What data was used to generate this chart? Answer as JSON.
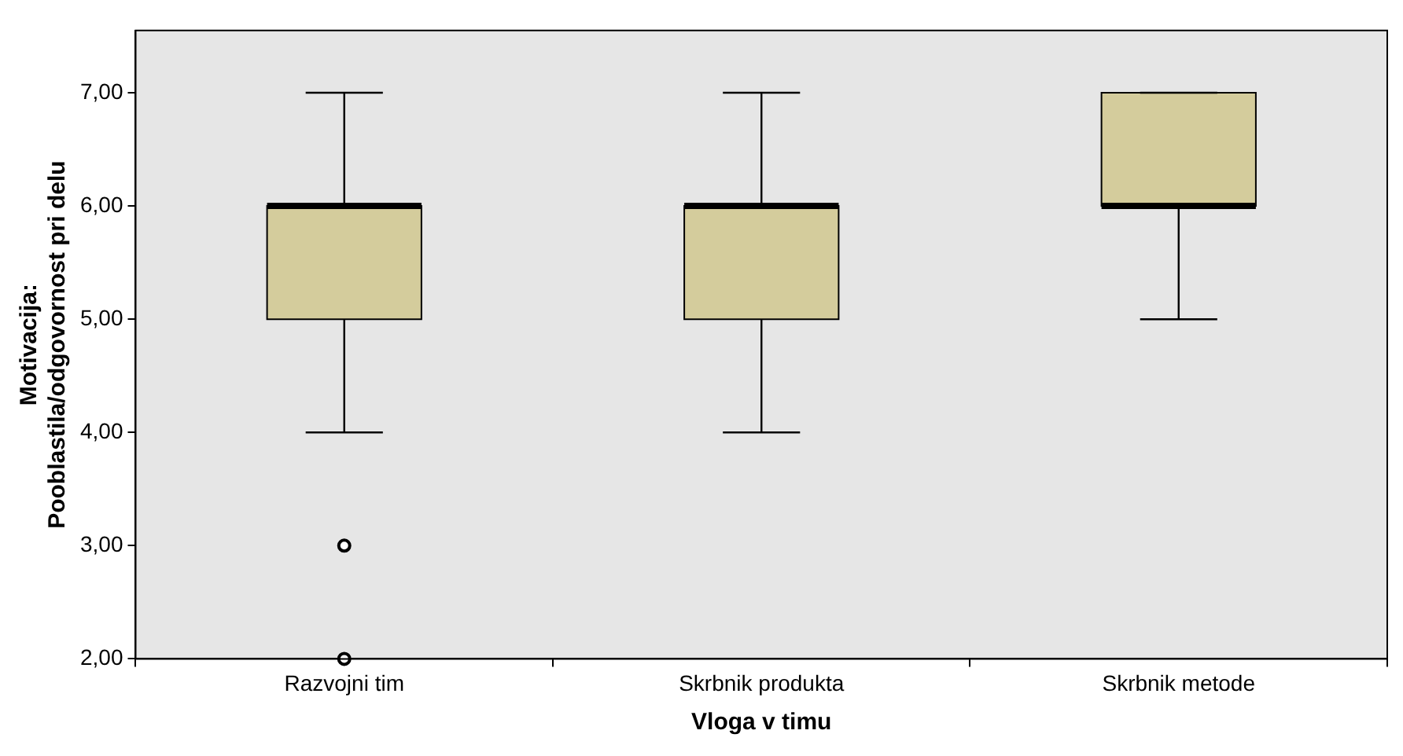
{
  "chart_data": {
    "type": "box",
    "xlabel": "Vloga v timu",
    "ylabel": "Motivacija:\nPooblastila/odgovornost pri delu",
    "categories": [
      "Razvojni tim",
      "Skrbnik produkta",
      "Skrbnik metode"
    ],
    "color": "#d4cc9c",
    "boxes": [
      {
        "low": 4,
        "q1": 5,
        "median": 6,
        "q3": 6,
        "high": 7,
        "outliers": [
          3,
          2
        ]
      },
      {
        "low": 4,
        "q1": 5,
        "median": 6,
        "q3": 6,
        "high": 7
      },
      {
        "low": 5,
        "q1": 6,
        "median": 6,
        "q3": 7,
        "high": 7
      }
    ],
    "ylim": [
      2,
      7.55
    ],
    "yticks": [
      {
        "value": 2,
        "label": "2,00"
      },
      {
        "value": 3,
        "label": "3,00"
      },
      {
        "value": 4,
        "label": "4,00"
      },
      {
        "value": 5,
        "label": "5,00"
      },
      {
        "value": 6,
        "label": "6,00"
      },
      {
        "value": 7,
        "label": "7,00"
      }
    ],
    "grid": false,
    "legend": false
  }
}
